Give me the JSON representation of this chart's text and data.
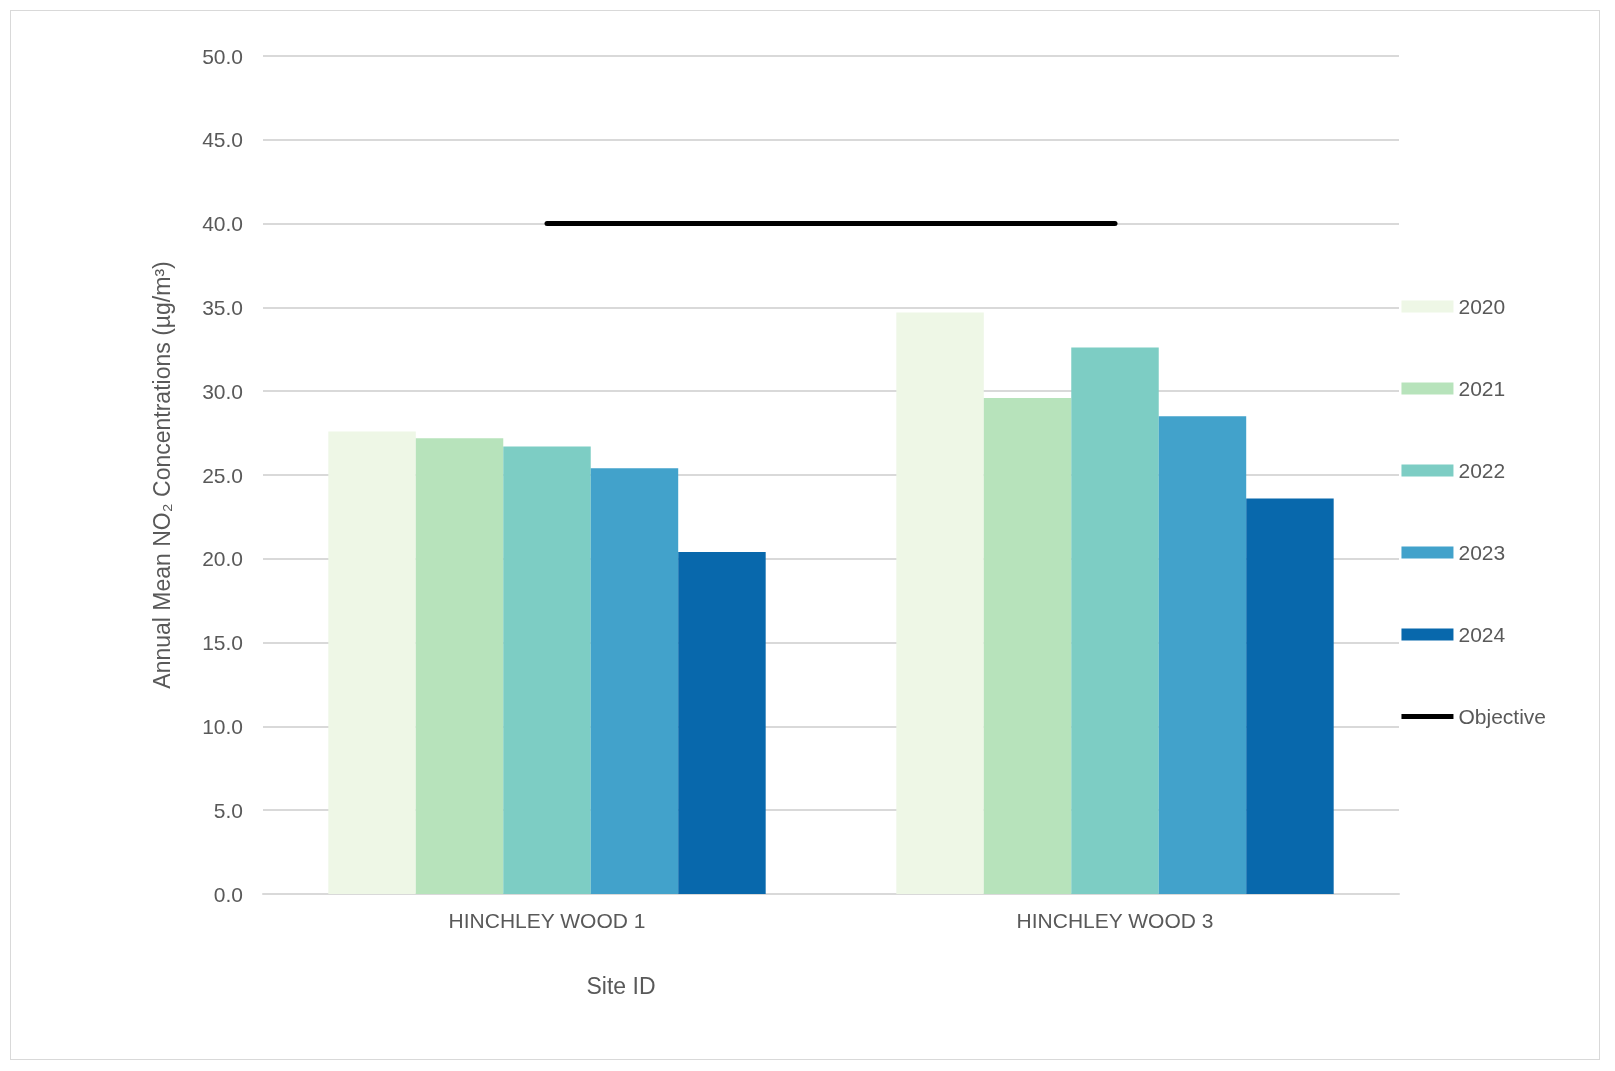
{
  "chart_data": {
    "type": "bar",
    "xlabel": "Site ID",
    "ylabel": "Annual Mean NO₂ Concentrations (µg/m³)",
    "categories": [
      "HINCHLEY WOOD 1",
      "HINCHLEY WOOD 3"
    ],
    "series": [
      {
        "name": "2020",
        "color": "#eef7e6",
        "values": [
          27.6,
          34.7
        ]
      },
      {
        "name": "2021",
        "color": "#b7e3bb",
        "values": [
          27.2,
          29.6
        ]
      },
      {
        "name": "2022",
        "color": "#7dcdc4",
        "values": [
          26.7,
          32.6
        ]
      },
      {
        "name": "2023",
        "color": "#42a2cb",
        "values": [
          25.4,
          28.5
        ]
      },
      {
        "name": "2024",
        "color": "#0868ac",
        "values": [
          20.4,
          23.6
        ]
      },
      {
        "name": "Objective",
        "type": "line",
        "color": "#000000",
        "values": [
          40,
          40
        ],
        "marker": "none",
        "line_style": "solid"
      }
    ],
    "ylim": [
      0,
      50
    ],
    "yticks": [
      {
        "value": 0,
        "label": "0.0"
      },
      {
        "value": 5,
        "label": "5.0"
      },
      {
        "value": 10,
        "label": "10.0"
      },
      {
        "value": 15,
        "label": "15.0"
      },
      {
        "value": 20,
        "label": "20.0"
      },
      {
        "value": 25,
        "label": "25.0"
      },
      {
        "value": 30,
        "label": "30.0"
      },
      {
        "value": 35,
        "label": "35.0"
      },
      {
        "value": 40,
        "label": "40.0"
      },
      {
        "value": 45,
        "label": "45.0"
      },
      {
        "value": 50,
        "label": "50.0"
      }
    ],
    "grid": "y",
    "legend": "right"
  }
}
